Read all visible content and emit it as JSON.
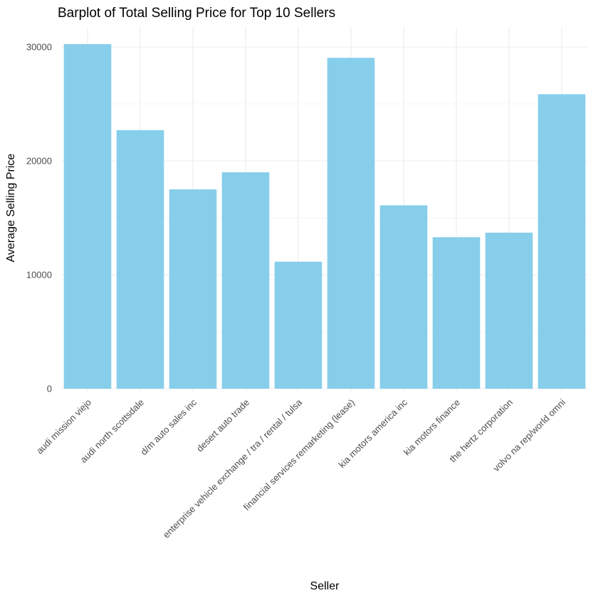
{
  "chart_data": {
    "type": "bar",
    "title": "Barplot of Total Selling Price for Top 10 Sellers",
    "xlabel": "Seller",
    "ylabel": "Average Selling Price",
    "categories": [
      "audi mission viejo",
      "audi north scottsdale",
      "d/m auto sales inc",
      "desert auto trade",
      "enterprise vehicle exchange / tra / rental / tulsa",
      "financial services remarketing (lease)",
      "kia motors america  inc",
      "kia motors finance",
      "the hertz corporation",
      "volvo na rep/world omni"
    ],
    "values": [
      30250,
      22700,
      17500,
      19000,
      11150,
      29050,
      16100,
      13300,
      13700,
      25850
    ],
    "yticks": [
      0,
      10000,
      20000,
      30000
    ],
    "ylim": [
      0,
      31800
    ],
    "bar_color": "#87CEEB",
    "grid": true,
    "legend": "none"
  }
}
